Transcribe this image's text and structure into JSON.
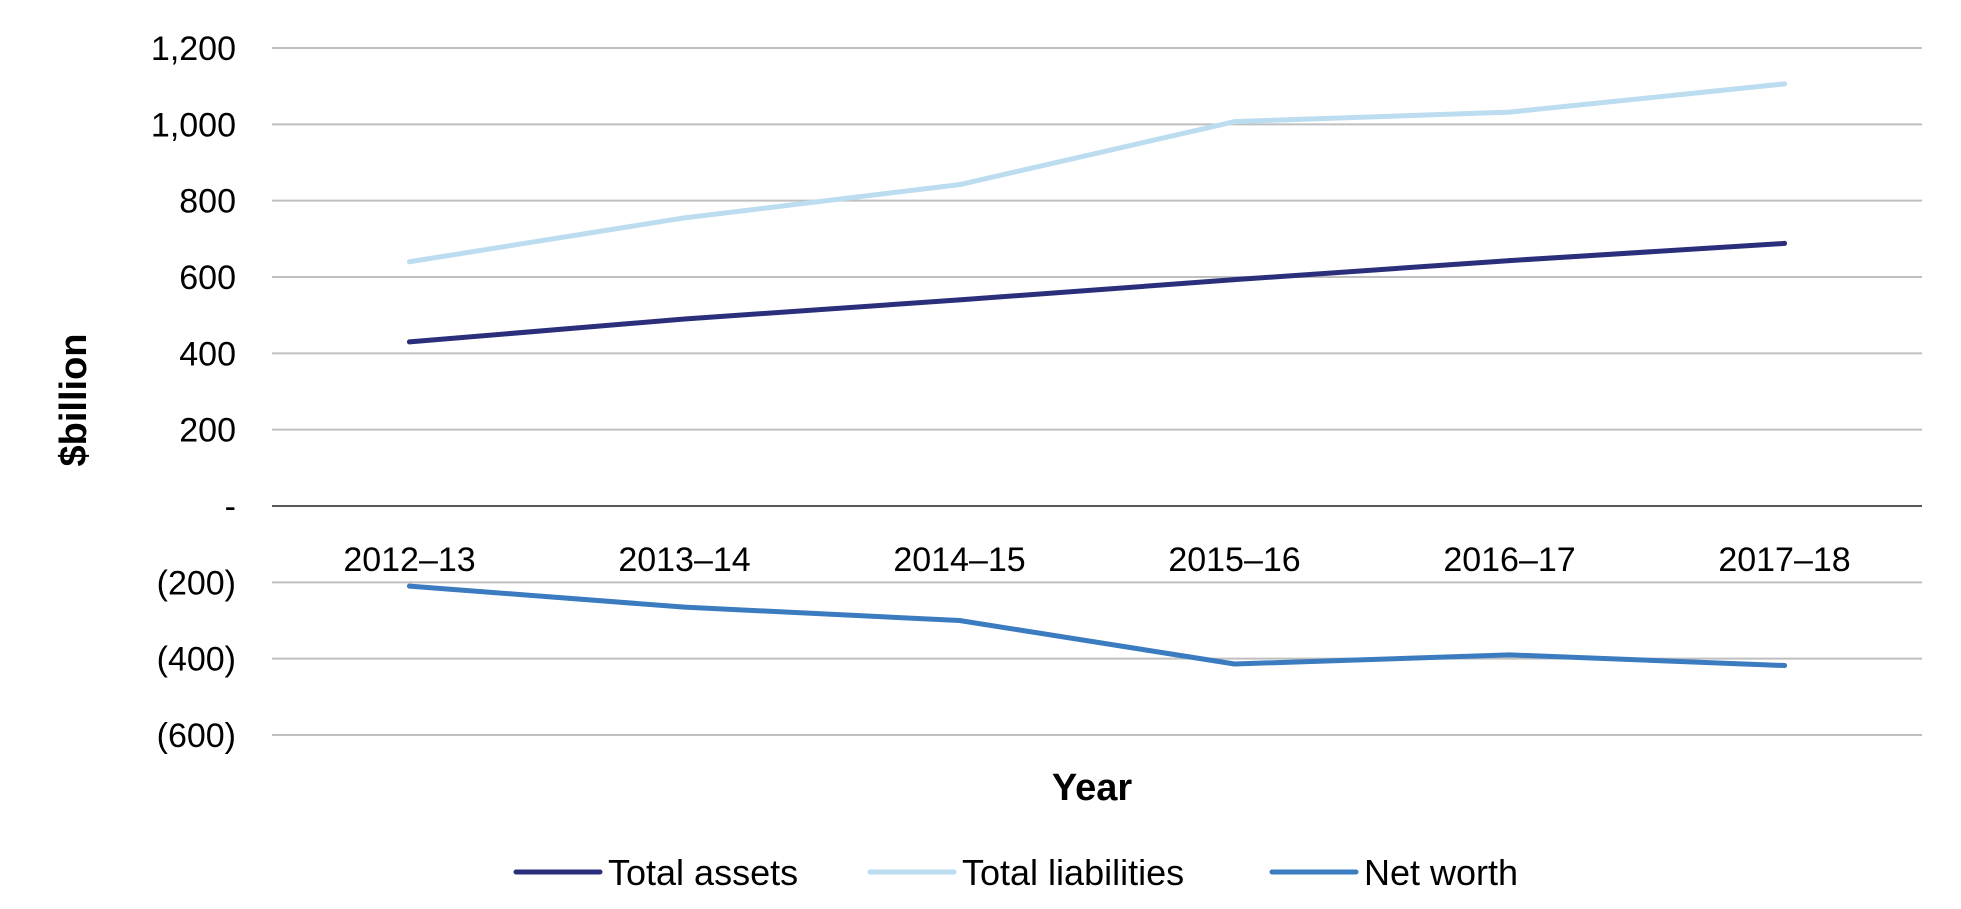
{
  "chart_data": {
    "type": "line",
    "title": "",
    "xlabel": "Year",
    "ylabel": "$billion",
    "categories": [
      "2012–13",
      "2013–14",
      "2014–15",
      "2015–16",
      "2016–17",
      "2017–18"
    ],
    "ylim": [
      -600,
      1200
    ],
    "yticks": [
      1200,
      1000,
      800,
      600,
      400,
      200,
      0,
      -200,
      -400,
      -600
    ],
    "ytick_labels": [
      "1,200",
      "1,000",
      "800",
      "600",
      "400",
      "200",
      "-",
      "(200)",
      "(400)",
      "(600)"
    ],
    "grid": true,
    "legend_position": "bottom",
    "series": [
      {
        "name": "Total assets",
        "color": "#2b2f7b",
        "values": [
          430,
          490,
          540,
          593,
          643,
          688
        ]
      },
      {
        "name": "Total liabilities",
        "color": "#bcdcef",
        "values": [
          640,
          755,
          842,
          1007,
          1032,
          1106
        ]
      },
      {
        "name": "Net worth",
        "color": "#3b7bbf",
        "values": [
          -210,
          -265,
          -300,
          -414,
          -390,
          -418
        ]
      }
    ]
  }
}
